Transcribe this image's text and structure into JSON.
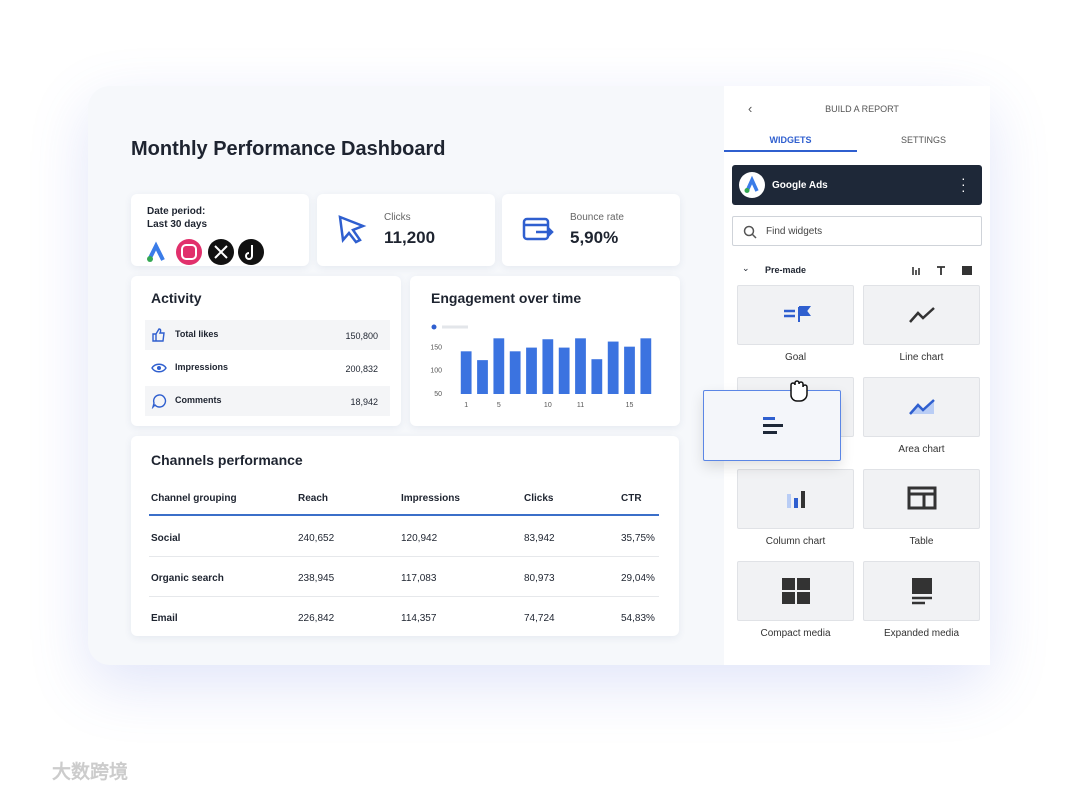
{
  "dashboard": {
    "title": "Monthly Performance Dashboard",
    "date_period": {
      "label": "Date period:",
      "value": "Last 30 days"
    },
    "kpis": [
      {
        "label": "Clicks",
        "value": "11,200"
      },
      {
        "label": "Bounce rate",
        "value": "5,90%"
      }
    ],
    "activity": {
      "title": "Activity",
      "rows": [
        {
          "label": "Total likes",
          "value": "150,800"
        },
        {
          "label": "Impressions",
          "value": "200,832"
        },
        {
          "label": "Comments",
          "value": "18,942"
        }
      ]
    },
    "channels": {
      "title": "Channels performance",
      "columns": [
        "Channel grouping",
        "Reach",
        "Impressions",
        "Clicks",
        "CTR"
      ],
      "rows": [
        [
          "Social",
          "240,652",
          "120,942",
          "83,942",
          "35,75%"
        ],
        [
          "Organic search",
          "238,945",
          "117,083",
          "80,973",
          "29,04%"
        ],
        [
          "Email",
          "226,842",
          "114,357",
          "74,724",
          "54,83%"
        ]
      ]
    }
  },
  "chart_data": {
    "type": "bar",
    "title": "Engagement over time",
    "color": "#3b73e0",
    "categories": [
      "1",
      null,
      "5",
      null,
      null,
      "10",
      null,
      "11",
      null,
      null,
      "15",
      null
    ],
    "values": [
      142,
      123,
      170,
      142,
      150,
      168,
      150,
      170,
      125,
      163,
      152,
      170
    ],
    "ylim": [
      50,
      175
    ],
    "yticks": [
      50,
      100,
      150
    ]
  },
  "sidebar": {
    "header": "BUILD A REPORT",
    "tabs": [
      "WIDGETS",
      "SETTINGS"
    ],
    "source": "Google Ads",
    "search": "Find widgets",
    "section": "Pre-made",
    "widgets": [
      "Goal",
      "Line chart",
      "Area chart",
      "Column chart",
      "Table",
      "Compact media",
      "Expanded media"
    ]
  },
  "watermark": "大数跨境"
}
